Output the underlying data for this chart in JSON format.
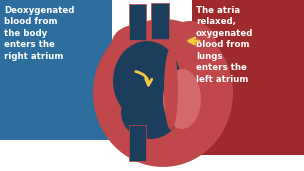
{
  "bg_color": "#ffffff",
  "left_box_color": "#2e6e9e",
  "right_box_color": "#9e2a2b",
  "left_text": "Deoxygenated\nblood from\nthe body\nenters the\nright atrium",
  "right_text": "The atria\nrelaxed,\noxygenated\nblood from\nlungs\nenters the\nleft atrium",
  "text_color": "#ffffff",
  "heart_outer_color": "#c0474a",
  "dark_blue": "#1a3e5c",
  "arrow_color": "#f5c842",
  "heart_pink": "#d4686b"
}
